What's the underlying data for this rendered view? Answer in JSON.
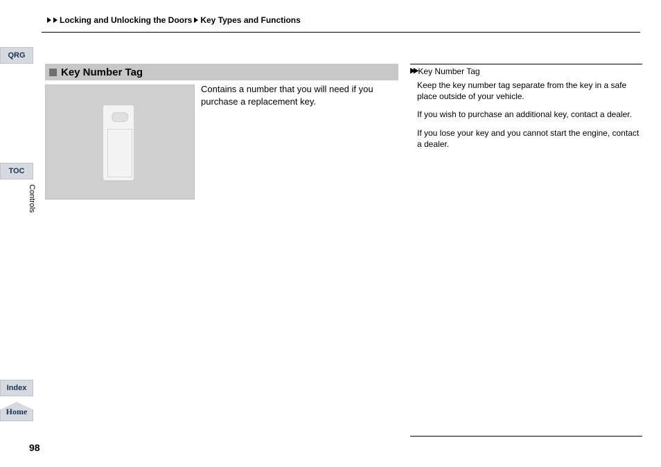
{
  "breadcrumb": {
    "level1": "Locking and Unlocking the Doors",
    "level2": "Key Types and Functions"
  },
  "bookmarks": {
    "qrg": "QRG",
    "toc": "TOC",
    "side_label": "Controls",
    "index": "Index",
    "home": "Home"
  },
  "heading": "Key Number Tag",
  "description": "Contains a number that you will need if you purchase a replacement key.",
  "sidebar_note": {
    "title": "Key Number Tag",
    "p1": "Keep the key number tag separate from the key in a safe place outside of your vehicle.",
    "p2": "If you wish to purchase an additional key, contact a dealer.",
    "p3": "If you lose your key and you cannot start the engine, contact a dealer."
  },
  "page_number": "98",
  "colors": {
    "heading_bg": "#c7c7c7",
    "heading_sq": "#6f6f6f",
    "figure_bg": "#cfcfcf",
    "bookmark_bg": "#d6d9de",
    "bookmark_text": "#1b2f5a",
    "rule": "#000000",
    "page_bg": "#ffffff"
  }
}
